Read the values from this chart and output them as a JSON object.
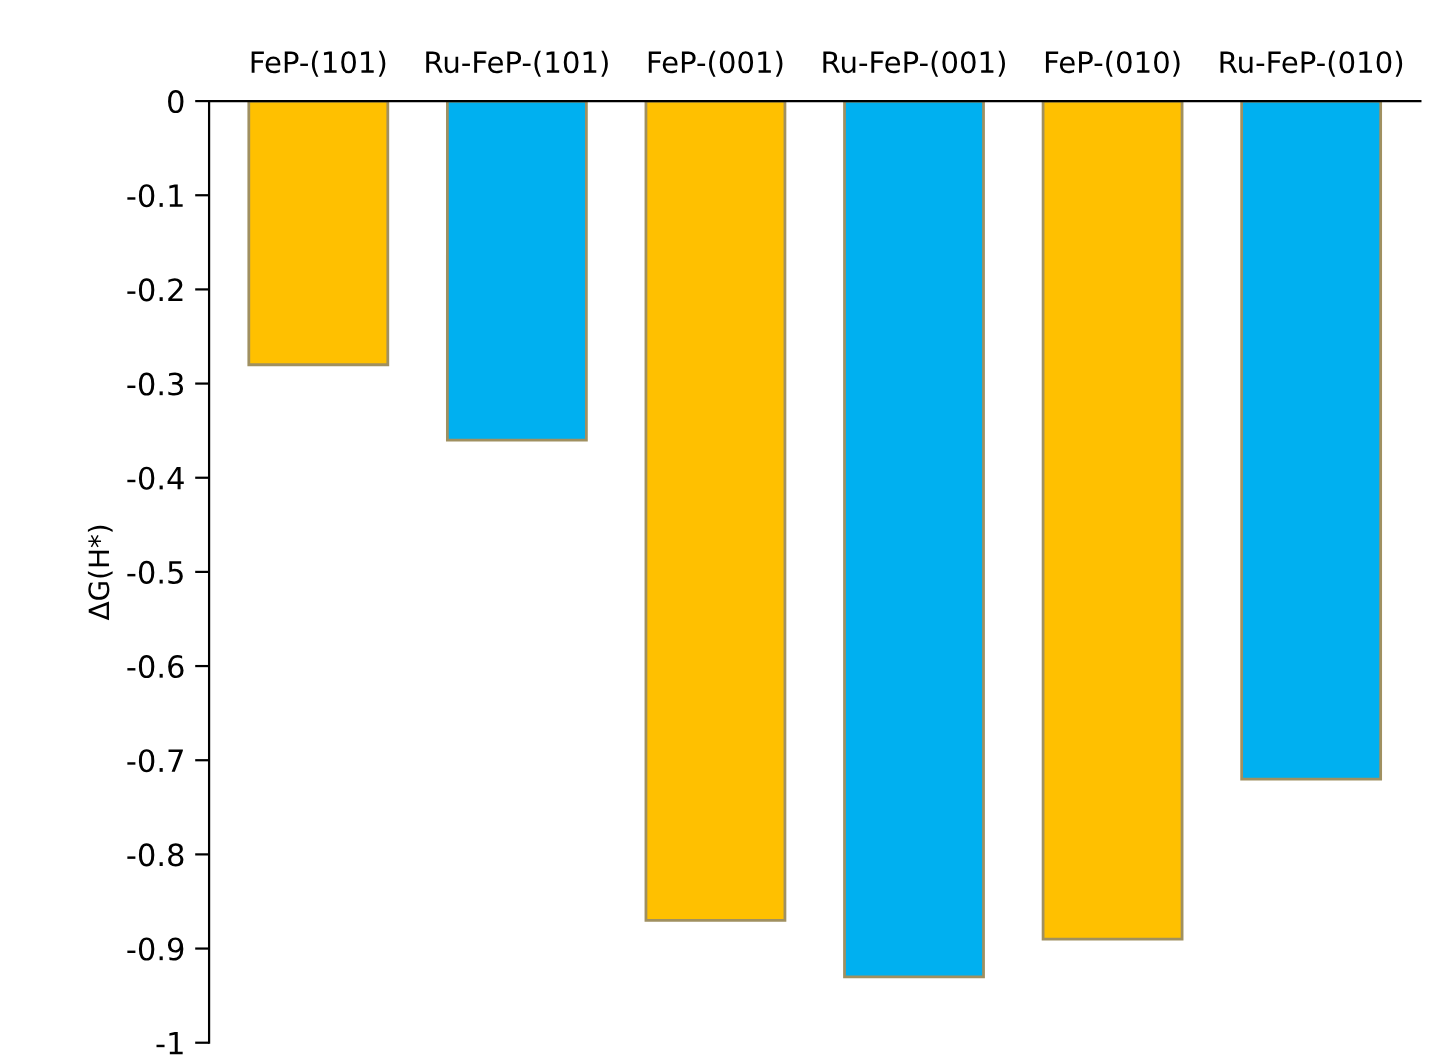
{
  "chart_data": {
    "type": "bar",
    "ylabel": "ΔG(H*)",
    "categories": [
      "FeP-(101)",
      "Ru-FeP-(101)",
      "FeP-(001)",
      "Ru-FeP-(001)",
      "FeP-(010)",
      "Ru-FeP-(010)"
    ],
    "values": [
      -0.28,
      -0.36,
      -0.87,
      -0.93,
      -0.89,
      -0.72
    ],
    "colors": [
      "#ffc000",
      "#00b0f0",
      "#ffc000",
      "#00b0f0",
      "#ffc000",
      "#00b0f0"
    ],
    "ylim": [
      -1,
      0
    ],
    "yticks": [
      -1,
      -0.9,
      -0.8,
      -0.7,
      -0.6,
      -0.5,
      -0.4,
      -0.3,
      -0.2,
      -0.1,
      0
    ],
    "grid": false
  }
}
